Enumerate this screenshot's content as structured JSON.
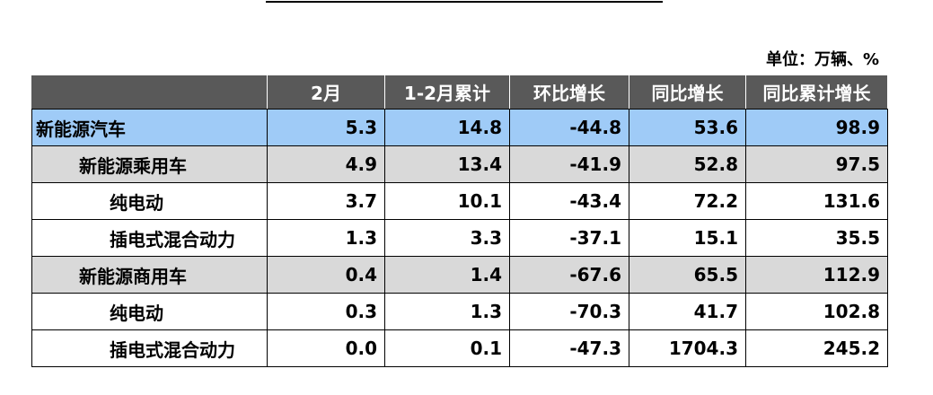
{
  "unit": "单位：万辆、%",
  "table": {
    "header": [
      "",
      "2月",
      "1-2月累计",
      "环比增长",
      "同比增长",
      "同比累计增长"
    ],
    "rows": [
      [
        "新能源汽车",
        "5.3",
        "14.8",
        "-44.8",
        "53.6",
        "98.9"
      ],
      [
        "新能源乘用车",
        "4.9",
        "13.4",
        "-41.9",
        "52.8",
        "97.5"
      ],
      [
        "纯电动",
        "3.7",
        "10.1",
        "-43.4",
        "72.2",
        "131.6"
      ],
      [
        "插电式混合动力",
        "1.3",
        "3.3",
        "-37.1",
        "15.1",
        "35.5"
      ],
      [
        "新能源商用车",
        "0.4",
        "1.4",
        "-67.6",
        "65.5",
        "112.9"
      ],
      [
        "纯电动",
        "0.3",
        "1.3",
        "-70.3",
        "41.7",
        "102.8"
      ],
      [
        "插电式混合动力",
        "0.0",
        "0.1",
        "-47.3",
        "1704.3",
        "245.2"
      ]
    ]
  }
}
